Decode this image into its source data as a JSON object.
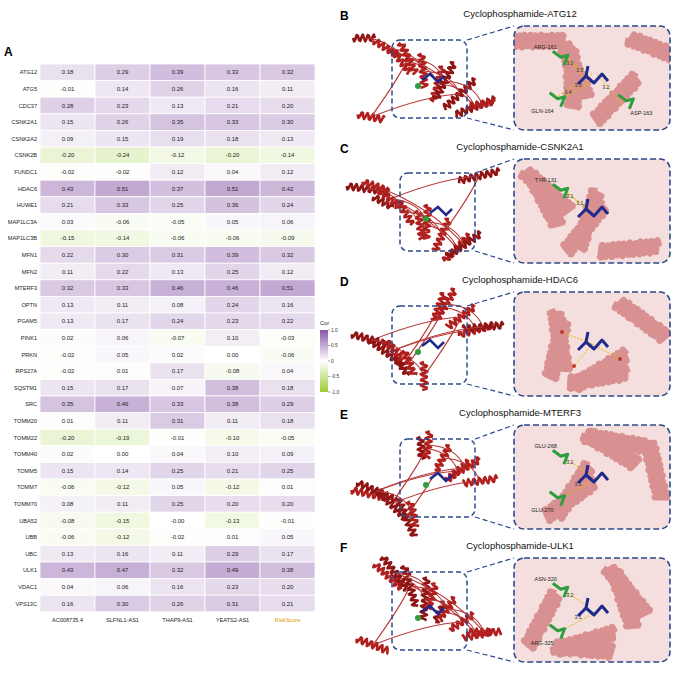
{
  "chart_data": {
    "type": "heatmap",
    "panel_label": "A",
    "data_labels": true,
    "rows": [
      "ATG12",
      "ATG5",
      "CDC37",
      "CSNK2A1",
      "CSNK2A2",
      "CSNK2B",
      "FUNDC1",
      "HDAC6",
      "HUWE1",
      "MAP1LC3A",
      "MAP1LC3B",
      "MFN1",
      "MFN2",
      "MTERF3",
      "OPTN",
      "PGAM5",
      "PINK1",
      "PRKN",
      "RPS27A",
      "SQSTM1",
      "SRC",
      "TOMM20",
      "TOMM22",
      "TOMM40",
      "TOMM5",
      "TOMM7",
      "TOMM70",
      "UBA52",
      "UBB",
      "UBC",
      "ULK1",
      "VDAC1",
      "VPS13C"
    ],
    "columns": [
      "AC008735.4",
      "SLFNL1-AS1",
      "THAP9-AS1",
      "YEATS2-AS1",
      "RiskScore"
    ],
    "values": [
      [
        0.18,
        0.29,
        0.39,
        0.33,
        0.32
      ],
      [
        -0.01,
        0.14,
        0.26,
        0.16,
        0.11
      ],
      [
        0.28,
        0.23,
        0.13,
        0.21,
        0.2
      ],
      [
        0.15,
        0.26,
        0.35,
        0.33,
        0.3
      ],
      [
        0.09,
        0.15,
        0.19,
        0.18,
        0.13
      ],
      [
        -0.2,
        -0.24,
        -0.12,
        -0.2,
        -0.14
      ],
      [
        -0.02,
        -0.02,
        0.12,
        0.04,
        0.12
      ],
      [
        0.43,
        0.51,
        0.37,
        0.51,
        0.42
      ],
      [
        0.21,
        0.33,
        0.25,
        0.36,
        0.24
      ],
      [
        0.03,
        -0.06,
        -0.05,
        0.05,
        0.06
      ],
      [
        -0.15,
        -0.14,
        -0.06,
        -0.06,
        -0.09
      ],
      [
        0.22,
        0.3,
        0.31,
        0.39,
        0.32
      ],
      [
        0.11,
        0.22,
        0.13,
        0.25,
        0.12
      ],
      [
        0.32,
        0.33,
        0.46,
        0.46,
        0.51
      ],
      [
        0.13,
        0.11,
        0.08,
        0.24,
        0.16
      ],
      [
        0.13,
        0.17,
        0.24,
        0.23,
        0.22
      ],
      [
        0.02,
        0.06,
        -0.07,
        0.1,
        -0.03
      ],
      [
        -0.02,
        0.05,
        0.02,
        0,
        -0.06
      ],
      [
        -0.02,
        0.01,
        0.17,
        -0.08,
        0.04
      ],
      [
        0.15,
        0.17,
        0.07,
        0.38,
        0.18
      ],
      [
        0.35,
        0.46,
        0.33,
        0.38,
        0.29
      ],
      [
        0.01,
        0.11,
        0.31,
        0.11,
        0.18
      ],
      [
        -0.2,
        -0.19,
        -0.01,
        -0.1,
        -0.05
      ],
      [
        0.02,
        0,
        0.04,
        0.1,
        0.09
      ],
      [
        0.15,
        0.14,
        0.25,
        0.21,
        0.25
      ],
      [
        -0.06,
        -0.12,
        0.05,
        -0.12,
        0.01
      ],
      [
        0.08,
        0.11,
        0.25,
        0.2,
        0.2
      ],
      [
        -0.08,
        -0.15,
        0,
        -0.13,
        -0.01
      ],
      [
        -0.06,
        -0.12,
        -0.02,
        0.01,
        0.05
      ],
      [
        0.13,
        0.16,
        0.11,
        0.29,
        0.17
      ],
      [
        0.43,
        0.47,
        0.32,
        0.49,
        0.38
      ],
      [
        0.04,
        0.06,
        0.16,
        0.23,
        0.2
      ],
      [
        0.16,
        0.3,
        0.26,
        0.31,
        0.21
      ]
    ],
    "value_labels": [
      [
        "0.18",
        "0.29",
        "0.39",
        "0.33",
        "0.32"
      ],
      [
        "-0.01",
        "0.14",
        "0.26",
        "0.16",
        "0.11"
      ],
      [
        "0.28",
        "0.23",
        "0.13",
        "0.21",
        "0.20"
      ],
      [
        "0.15",
        "0.26",
        "0.35",
        "0.33",
        "0.30"
      ],
      [
        "0.09",
        "0.15",
        "0.19",
        "0.18",
        "0.13"
      ],
      [
        "-0.20",
        "-0.24",
        "-0.12",
        "-0.20",
        "-0.14"
      ],
      [
        "-0.02",
        "-0.02",
        "0.12",
        "0.04",
        "0.12"
      ],
      [
        "0.43",
        "0.51",
        "0.37",
        "0.51",
        "0.42"
      ],
      [
        "0.21",
        "0.33",
        "0.25",
        "0.36",
        "0.24"
      ],
      [
        "0.03",
        "-0.06",
        "-0.05",
        "0.05",
        "0.06"
      ],
      [
        "-0.15",
        "-0.14",
        "-0.06",
        "-0.06",
        "-0.09"
      ],
      [
        "0.22",
        "0.30",
        "0.31",
        "0.39",
        "0.32"
      ],
      [
        "0.11",
        "0.22",
        "0.13",
        "0.25",
        "0.12"
      ],
      [
        "0.32",
        "0.33",
        "0.46",
        "0.46",
        "0.51"
      ],
      [
        "0.13",
        "0.11",
        "0.08",
        "0.24",
        "0.16"
      ],
      [
        "0.13",
        "0.17",
        "0.24",
        "0.23",
        "0.22"
      ],
      [
        "0.02",
        "0.06",
        "-0.07",
        "0.10",
        "-0.03"
      ],
      [
        "-0.02",
        "0.05",
        "0.02",
        "0.00",
        "-0.06"
      ],
      [
        "-0.02",
        "0.01",
        "0.17",
        "-0.08",
        "0.04"
      ],
      [
        "0.15",
        "0.17",
        "0.07",
        "0.38",
        "0.18"
      ],
      [
        "0.35",
        "0.46",
        "0.33",
        "0.38",
        "0.29"
      ],
      [
        "0.01",
        "0.11",
        "0.31",
        "0.11",
        "0.18"
      ],
      [
        "-0.20",
        "-0.19",
        "-0.01",
        "-0.10",
        "-0.05"
      ],
      [
        "0.02",
        "0.00",
        "0.04",
        "0.10",
        "0.09"
      ],
      [
        "0.15",
        "0.14",
        "0.25",
        "0.21",
        "0.25"
      ],
      [
        "-0.06",
        "-0.12",
        "0.05",
        "-0.12",
        "0.01"
      ],
      [
        "0.08",
        "0.11",
        "0.25",
        "0.20",
        "0.20"
      ],
      [
        "-0.08",
        "-0.15",
        "-0.00",
        "-0.13",
        "-0.01"
      ],
      [
        "-0.06",
        "-0.12",
        "-0.02",
        "0.01",
        "0.05"
      ],
      [
        "0.13",
        "0.16",
        "0.11",
        "0.29",
        "0.17"
      ],
      [
        "0.43",
        "0.47",
        "0.32",
        "0.49",
        "0.38"
      ],
      [
        "0.04",
        "0.06",
        "0.16",
        "0.23",
        "0.20"
      ],
      [
        "0.16",
        "0.30",
        "0.26",
        "0.31",
        "0.21"
      ]
    ],
    "colorbar": {
      "title": "Cor",
      "range": [
        -1,
        1
      ],
      "ticks": [
        {
          "value": 1,
          "label": "1.0"
        },
        0.5,
        0,
        -0.5,
        {
          "value": -1,
          "label": "-1.0"
        }
      ]
    }
  },
  "panels": [
    {
      "label": "B",
      "title": "Cyclophosphamide-ATG12",
      "residues": [
        "ARG-161",
        "GLN-164",
        "ASP-163"
      ],
      "distances": [
        "3.0",
        "3.3",
        "3.2",
        "3.5",
        "3.4"
      ]
    },
    {
      "label": "C",
      "title": "Cyclophosphamide-CSNK2A1",
      "residues": [
        "TYR-131"
      ],
      "distances": [
        "3.1",
        "3.1"
      ]
    },
    {
      "label": "D",
      "title": "Cyclophosphamide-HDAC6"
    },
    {
      "label": "E",
      "title": "Cyclophosphamide-MTERF3",
      "residues": [
        "GLU-268",
        "GLU-270"
      ],
      "distances": [
        "3.2",
        "3.1"
      ]
    },
    {
      "label": "F",
      "title": "Cyclophosphamide-ULK1",
      "residues": [
        "ASN-320",
        "ARG-325"
      ],
      "distances": [
        "3.2",
        "3.1"
      ]
    }
  ]
}
